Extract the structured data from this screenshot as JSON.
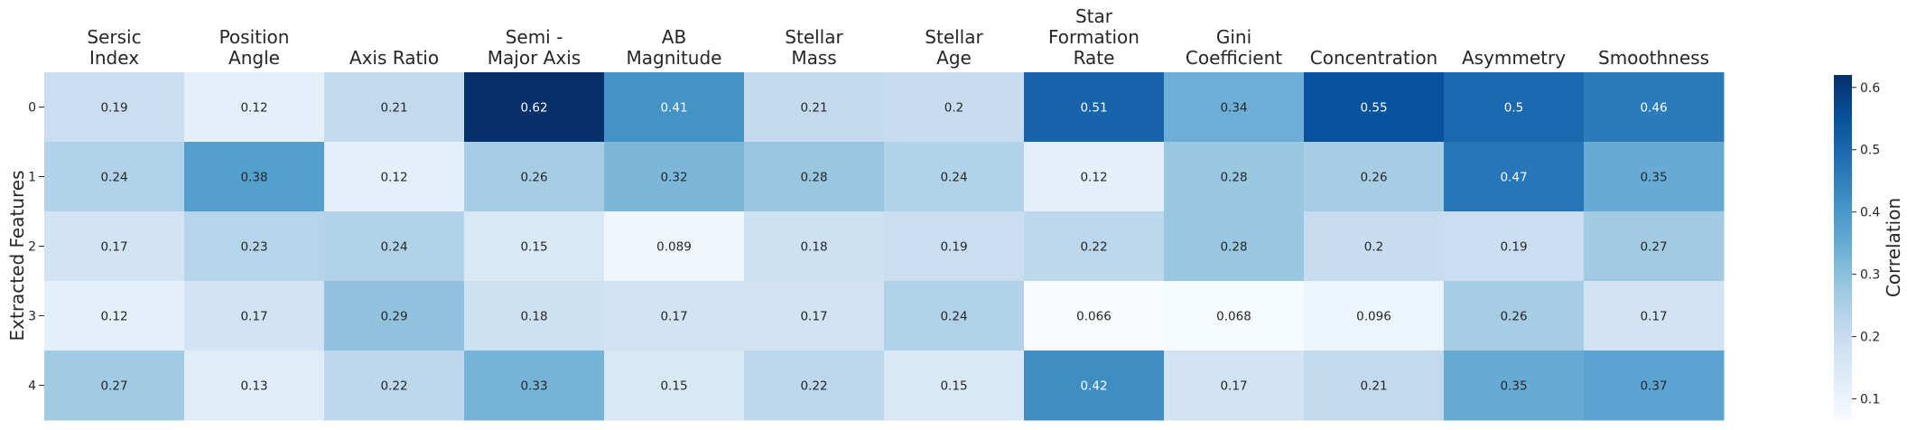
{
  "chart_data": {
    "type": "heatmap",
    "columns": [
      [
        "Sersic",
        "Index"
      ],
      [
        "Position",
        "Angle"
      ],
      [
        "Axis Ratio"
      ],
      [
        "Semi -",
        "Major Axis"
      ],
      [
        "AB",
        "Magnitude"
      ],
      [
        "Stellar",
        "Mass"
      ],
      [
        "Stellar",
        "Age"
      ],
      [
        "Star",
        "Formation",
        "Rate"
      ],
      [
        "Gini",
        "Coefficient"
      ],
      [
        "Concentration"
      ],
      [
        "Asymmetry"
      ],
      [
        "Smoothness"
      ]
    ],
    "rows": [
      "0",
      "1",
      "2",
      "3",
      "4"
    ],
    "values": [
      [
        0.19,
        0.12,
        0.21,
        0.62,
        0.41,
        0.21,
        0.2,
        0.51,
        0.34,
        0.55,
        0.5,
        0.46
      ],
      [
        0.24,
        0.38,
        0.12,
        0.26,
        0.32,
        0.28,
        0.24,
        0.12,
        0.28,
        0.26,
        0.47,
        0.35
      ],
      [
        0.17,
        0.23,
        0.24,
        0.15,
        0.089,
        0.18,
        0.19,
        0.22,
        0.28,
        0.2,
        0.19,
        0.27
      ],
      [
        0.12,
        0.17,
        0.29,
        0.18,
        0.17,
        0.17,
        0.24,
        0.066,
        0.068,
        0.096,
        0.26,
        0.17
      ],
      [
        0.27,
        0.13,
        0.22,
        0.33,
        0.15,
        0.22,
        0.15,
        0.42,
        0.17,
        0.21,
        0.35,
        0.37
      ]
    ],
    "ylabel": "Extracted Features",
    "colorbar_label": "Correlation",
    "colorbar_ticks": [
      "0.1",
      "0.2",
      "0.3",
      "0.4",
      "0.5",
      "0.6"
    ],
    "vmin": 0.066,
    "vmax": 0.62,
    "colormap": "Blues",
    "colormap_stops": [
      "#f7fbff",
      "#deebf7",
      "#c6dbef",
      "#9ecae1",
      "#6baed6",
      "#4292c6",
      "#2171b5",
      "#08519c",
      "#08306b"
    ],
    "text_dark": "#262626",
    "text_light": "#ffffff"
  }
}
